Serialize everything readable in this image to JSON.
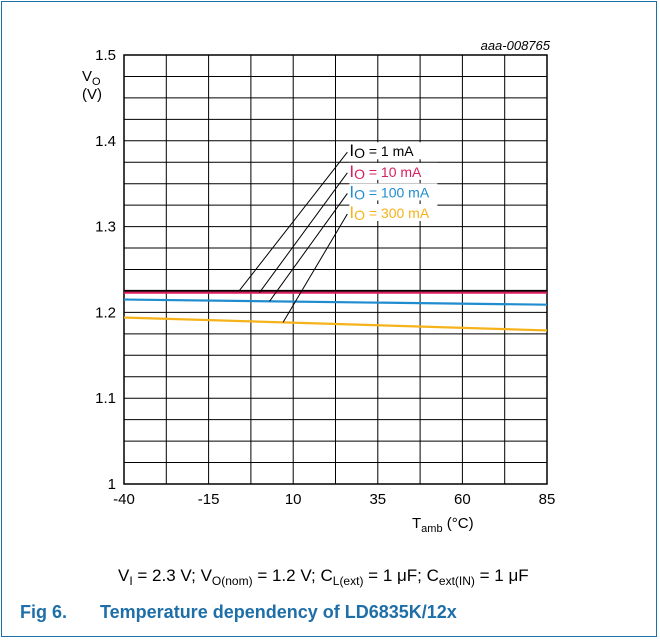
{
  "figure": {
    "id_label": "aaa-008765",
    "conditions": {
      "vi": "V",
      "vi_sub": "I",
      "vi_val": " = 2.3 V; ",
      "vo": "V",
      "vo_sub": "O(nom)",
      "vo_val": " = 1.2 V; ",
      "cl": "C",
      "cl_sub": "L(ext)",
      "cl_val": " = 1 μF; ",
      "ce": "C",
      "ce_sub": "ext(IN)",
      "ce_val": " = 1 μF"
    },
    "caption_number": "Fig 6.",
    "caption_title": "Temperature dependency of LD6835K/12x"
  },
  "chart_data": {
    "type": "line",
    "ylabel": "V",
    "ylabel_sub": "O",
    "yunit": "(V)",
    "xlabel": "T",
    "xlabel_sub": "amb",
    "xunit": " (°C)",
    "xlim": [
      -40,
      85
    ],
    "ylim": [
      1,
      1.5
    ],
    "xticks": [
      -40,
      -15,
      10,
      35,
      60,
      85
    ],
    "xtick_labels": [
      "-40",
      "-15",
      "10",
      "35",
      "60",
      "85"
    ],
    "yticks": [
      1,
      1.1,
      1.2,
      1.3,
      1.4,
      1.5
    ],
    "ytick_labels": [
      "1",
      "1.1",
      "1.2",
      "1.3",
      "1.4",
      "1.5"
    ],
    "grid": true,
    "series": [
      {
        "name": "I",
        "name_sub": "O",
        "name_val": " = 1 mA",
        "color": "#000000",
        "x": [
          -40,
          85
        ],
        "y": [
          1.225,
          1.225
        ]
      },
      {
        "name": "I",
        "name_sub": "O",
        "name_val": " = 10 mA",
        "color": "#d81e5b",
        "x": [
          -40,
          85
        ],
        "y": [
          1.223,
          1.223
        ]
      },
      {
        "name": "I",
        "name_sub": "O",
        "name_val": " = 100 mA",
        "color": "#1f8ccf",
        "x": [
          -40,
          85
        ],
        "y": [
          1.215,
          1.209
        ]
      },
      {
        "name": "I",
        "name_sub": "O",
        "name_val": " = 300 mA",
        "color": "#f5b21a",
        "x": [
          -40,
          85
        ],
        "y": [
          1.194,
          1.179
        ]
      }
    ]
  }
}
